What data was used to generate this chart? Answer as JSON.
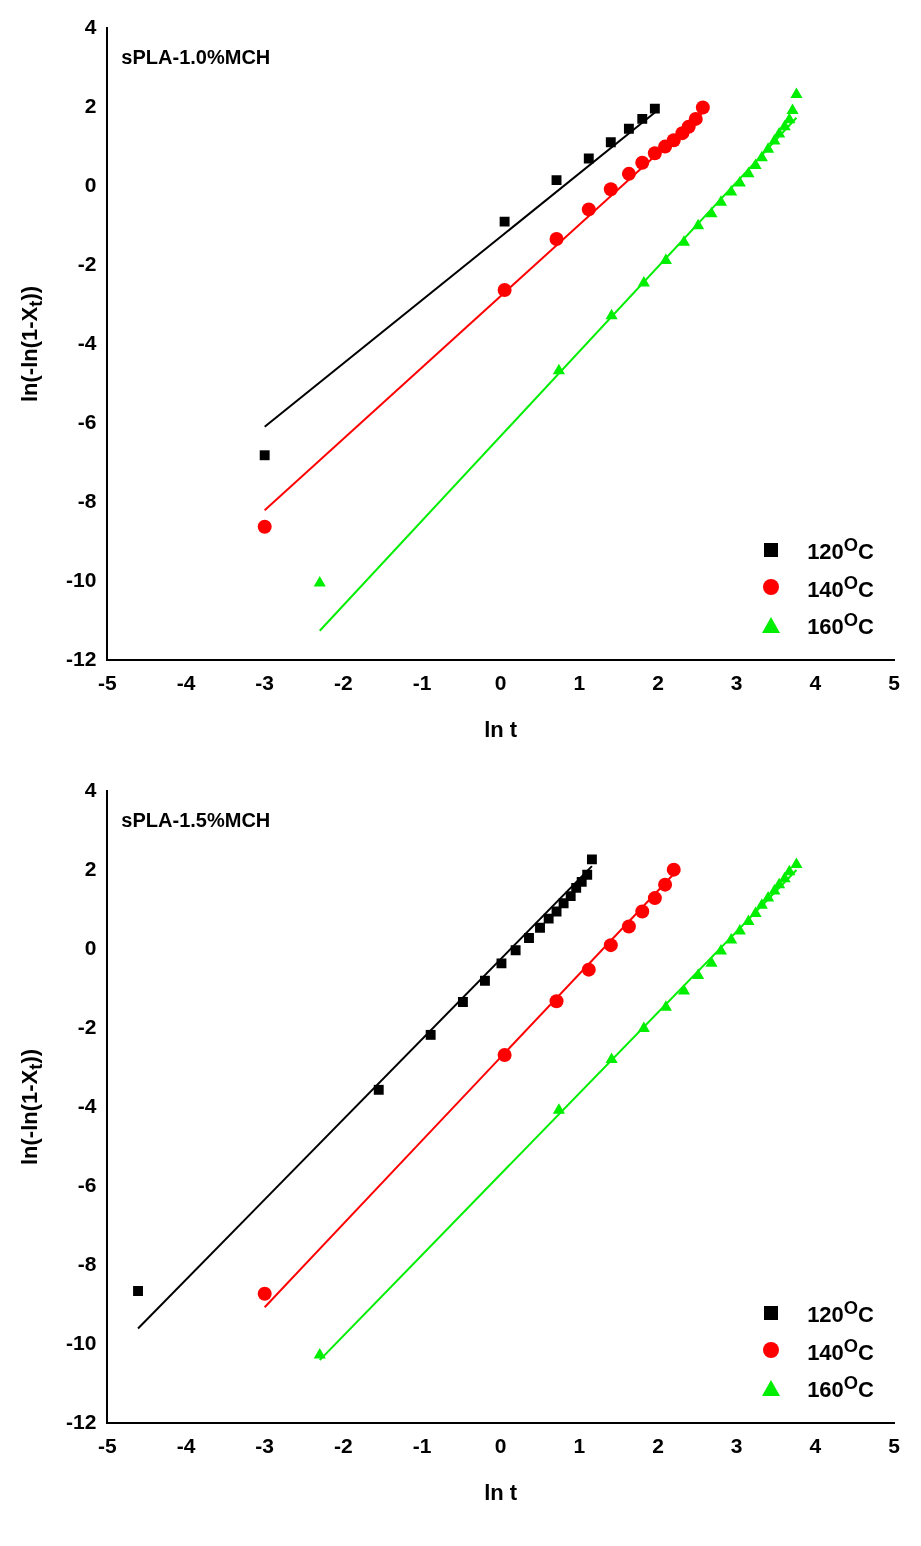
{
  "chart_data": [
    {
      "type": "scatter",
      "title": "sPLA-1.0%MCH",
      "xlabel": "ln t",
      "ylabel": "ln(-ln(1-X$_{t}$))",
      "xlim": [
        -5,
        5
      ],
      "xticks": [
        -5,
        -4,
        -3,
        -2,
        -1,
        0,
        1,
        2,
        3,
        4,
        5
      ],
      "ylim": [
        -12,
        4
      ],
      "yticks": [
        -12,
        -10,
        -8,
        -6,
        -4,
        -2,
        0,
        2,
        4
      ],
      "grid": false,
      "legend": "bottom right",
      "series": [
        {
          "name": "120$^{O}$C",
          "marker": "square",
          "color": "#000000",
          "x": [
            -3.0,
            0.05,
            0.71,
            1.12,
            1.4,
            1.63,
            1.8,
            1.96
          ],
          "values": [
            -6.81,
            -0.9,
            0.15,
            0.7,
            1.11,
            1.45,
            1.7,
            1.96
          ]
        },
        {
          "name": "140$^{O}$C",
          "marker": "circle",
          "color": "#ff0000",
          "x": [
            -3.0,
            0.05,
            0.71,
            1.12,
            1.4,
            1.63,
            1.8,
            1.96,
            2.09,
            2.2,
            2.31,
            2.39,
            2.48,
            2.57
          ],
          "values": [
            -8.62,
            -2.63,
            -1.34,
            -0.59,
            -0.08,
            0.31,
            0.59,
            0.83,
            1.0,
            1.16,
            1.34,
            1.5,
            1.7,
            1.99
          ]
        },
        {
          "name": "160$^{O}$C",
          "marker": "triangle",
          "color": "#00ee00",
          "x": [
            -2.3,
            0.74,
            1.41,
            1.82,
            2.1,
            2.33,
            2.51,
            2.68,
            2.8,
            2.93,
            3.04,
            3.15,
            3.24,
            3.32,
            3.4,
            3.48,
            3.54,
            3.61,
            3.67,
            3.71,
            3.76
          ],
          "values": [
            -10.04,
            -4.67,
            -3.28,
            -2.45,
            -1.88,
            -1.42,
            -1.0,
            -0.7,
            -0.41,
            -0.15,
            0.08,
            0.31,
            0.52,
            0.72,
            0.93,
            1.14,
            1.32,
            1.5,
            1.68,
            1.91,
            2.32
          ]
        },
        {
          "type": "line",
          "marker": "none",
          "color": "#000000",
          "x": [
            -3.0,
            1.96
          ],
          "values": [
            -6.09,
            1.86
          ]
        },
        {
          "type": "line",
          "marker": "none",
          "color": "#ff0000",
          "x": [
            -3.0,
            2.57
          ],
          "values": [
            -8.2,
            1.86
          ]
        },
        {
          "type": "line",
          "marker": "none",
          "color": "#00ee00",
          "x": [
            -2.3,
            3.76
          ],
          "values": [
            -11.25,
            1.73
          ]
        }
      ]
    },
    {
      "type": "scatter",
      "title": "sPLA-1.5%MCH",
      "xlabel": "ln t",
      "ylabel": "ln(-ln(1-X$_{t}$))",
      "xlim": [
        -5,
        5
      ],
      "xticks": [
        -5,
        -4,
        -3,
        -2,
        -1,
        0,
        1,
        2,
        3,
        4,
        5
      ],
      "ylim": [
        -12,
        4
      ],
      "yticks": [
        -12,
        -10,
        -8,
        -6,
        -4,
        -2,
        0,
        2,
        4
      ],
      "grid": false,
      "legend": "bottom right",
      "series": [
        {
          "name": "120$^{O}$C",
          "marker": "square",
          "color": "#000000",
          "x": [
            -4.61,
            -1.55,
            -0.89,
            -0.48,
            -0.2,
            0.01,
            0.19,
            0.36,
            0.5,
            0.61,
            0.71,
            0.8,
            0.89,
            0.96,
            1.03,
            1.1,
            1.16
          ],
          "values": [
            -8.65,
            -3.56,
            -2.17,
            -1.34,
            -0.8,
            -0.36,
            -0.03,
            0.28,
            0.54,
            0.77,
            0.95,
            1.16,
            1.34,
            1.55,
            1.7,
            1.88,
            2.27
          ]
        },
        {
          "name": "140$^{O}$C",
          "marker": "circle",
          "color": "#ff0000",
          "x": [
            -3.0,
            0.05,
            0.71,
            1.12,
            1.4,
            1.63,
            1.8,
            1.96,
            2.09,
            2.2
          ],
          "values": [
            -8.72,
            -2.68,
            -1.32,
            -0.52,
            0.1,
            0.57,
            0.95,
            1.29,
            1.63,
            2.01
          ]
        },
        {
          "name": "160$^{O}$C",
          "marker": "triangle",
          "color": "#00ee00",
          "x": [
            -2.3,
            0.74,
            1.41,
            1.82,
            2.1,
            2.33,
            2.51,
            2.68,
            2.8,
            2.93,
            3.04,
            3.15,
            3.24,
            3.32,
            3.4,
            3.48,
            3.54,
            3.61,
            3.67,
            3.76
          ],
          "values": [
            -10.27,
            -4.08,
            -2.79,
            -2.01,
            -1.47,
            -1.06,
            -0.67,
            -0.36,
            -0.05,
            0.23,
            0.46,
            0.7,
            0.9,
            1.11,
            1.29,
            1.47,
            1.63,
            1.78,
            1.96,
            2.14
          ]
        },
        {
          "type": "line",
          "marker": "none",
          "color": "#000000",
          "x": [
            -4.61,
            1.16
          ],
          "values": [
            -9.6,
            2.1
          ]
        },
        {
          "type": "line",
          "marker": "none",
          "color": "#ff0000",
          "x": [
            -3.0,
            2.2
          ],
          "values": [
            -9.06,
            1.9
          ]
        },
        {
          "type": "line",
          "marker": "none",
          "color": "#00ee00",
          "x": [
            -2.3,
            3.76
          ],
          "values": [
            -10.4,
            2.0
          ]
        }
      ]
    }
  ]
}
